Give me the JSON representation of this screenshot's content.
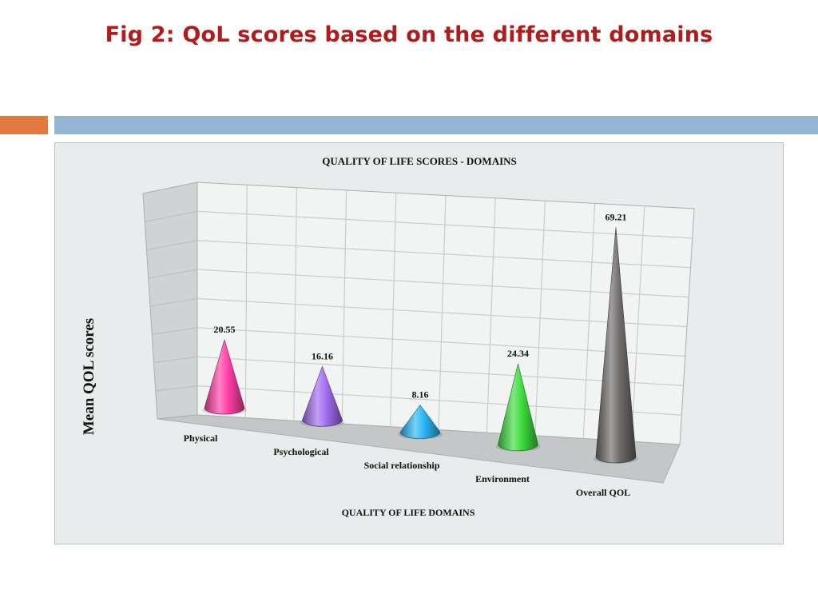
{
  "slide": {
    "title": "Fig 2: QoL scores based on the different domains"
  },
  "colors": {
    "title": "#b01c1c",
    "accent_orange": "#e07a3f",
    "accent_blue": "#94b6d2",
    "chart_background": "#e8ecec",
    "grid": "#c8cccc"
  },
  "chart_data": {
    "type": "bar",
    "style": "3d-cone",
    "title": "QUALITY OF LIFE SCORES - DOMAINS",
    "xlabel": "QUALITY OF LIFE DOMAINS",
    "ylabel": "Mean QOL scores",
    "categories": [
      "Physical",
      "Psychological",
      "Social relationship",
      "Environment",
      "Overall QOL"
    ],
    "values": [
      20.55,
      16.16,
      8.16,
      24.34,
      69.21
    ],
    "value_labels": [
      "20.55",
      "16.16",
      "8.16",
      "24.34",
      "69.21"
    ],
    "colors": [
      "#ff3fa6",
      "#a06cf0",
      "#29b6f6",
      "#3ddc3d",
      "#6e6a6a"
    ],
    "ylim": [
      0,
      80
    ],
    "grid": true,
    "legend": "none"
  }
}
